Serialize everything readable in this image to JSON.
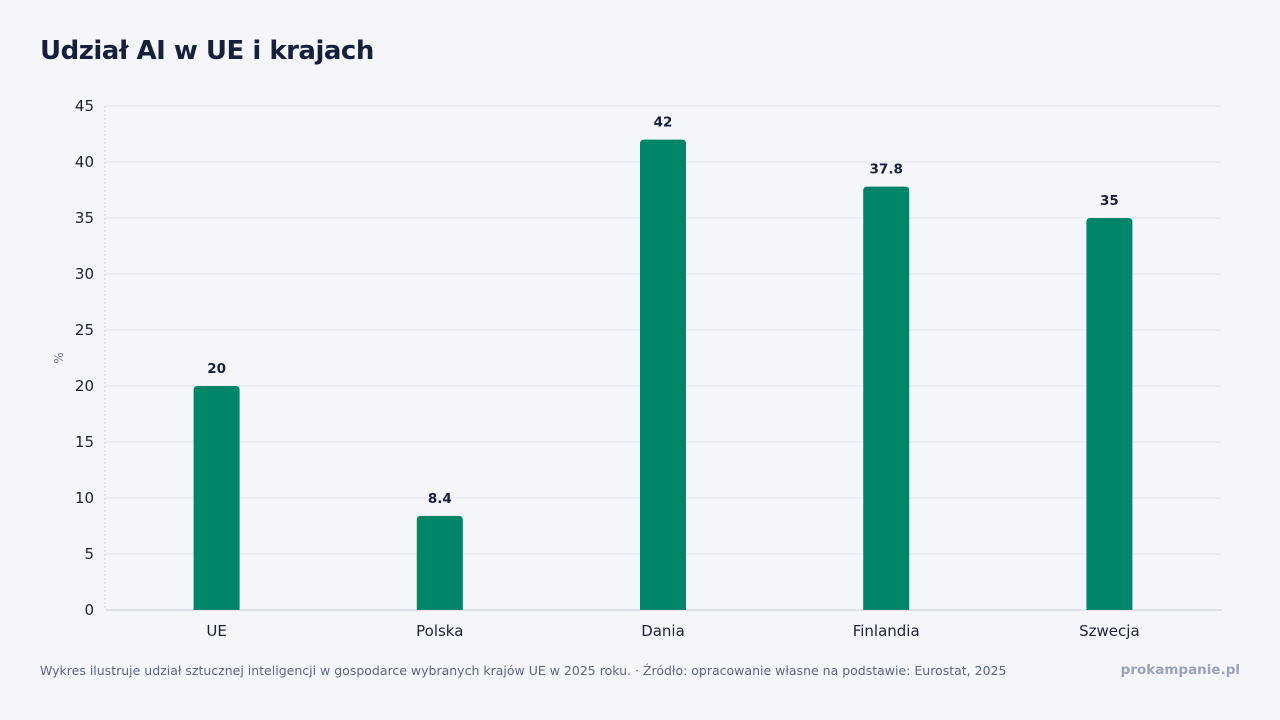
{
  "chart_data": {
    "type": "bar",
    "title": "Udział AI w UE i krajach",
    "xlabel": "",
    "ylabel": "%",
    "categories": [
      "UE",
      "Polska",
      "Dania",
      "Finlandia",
      "Szwecja"
    ],
    "values": [
      20,
      8.4,
      42,
      37.8,
      35
    ],
    "value_labels": [
      "20",
      "8.4",
      "42",
      "37.8",
      "35"
    ],
    "ylim": [
      0,
      45
    ],
    "yticks": [
      "0",
      "5",
      "10",
      "15",
      "20",
      "25",
      "30",
      "35",
      "40",
      "45"
    ],
    "grid": true,
    "bar_color": "#008569"
  },
  "footer": {
    "note": "Wykres ilustruje udział sztucznej inteligencji w gospodarce wybranych krajów UE w 2025 roku. · Źródło: opracowanie własne na podstawie: Eurostat, 2025",
    "brand": "prokampanie.pl"
  }
}
